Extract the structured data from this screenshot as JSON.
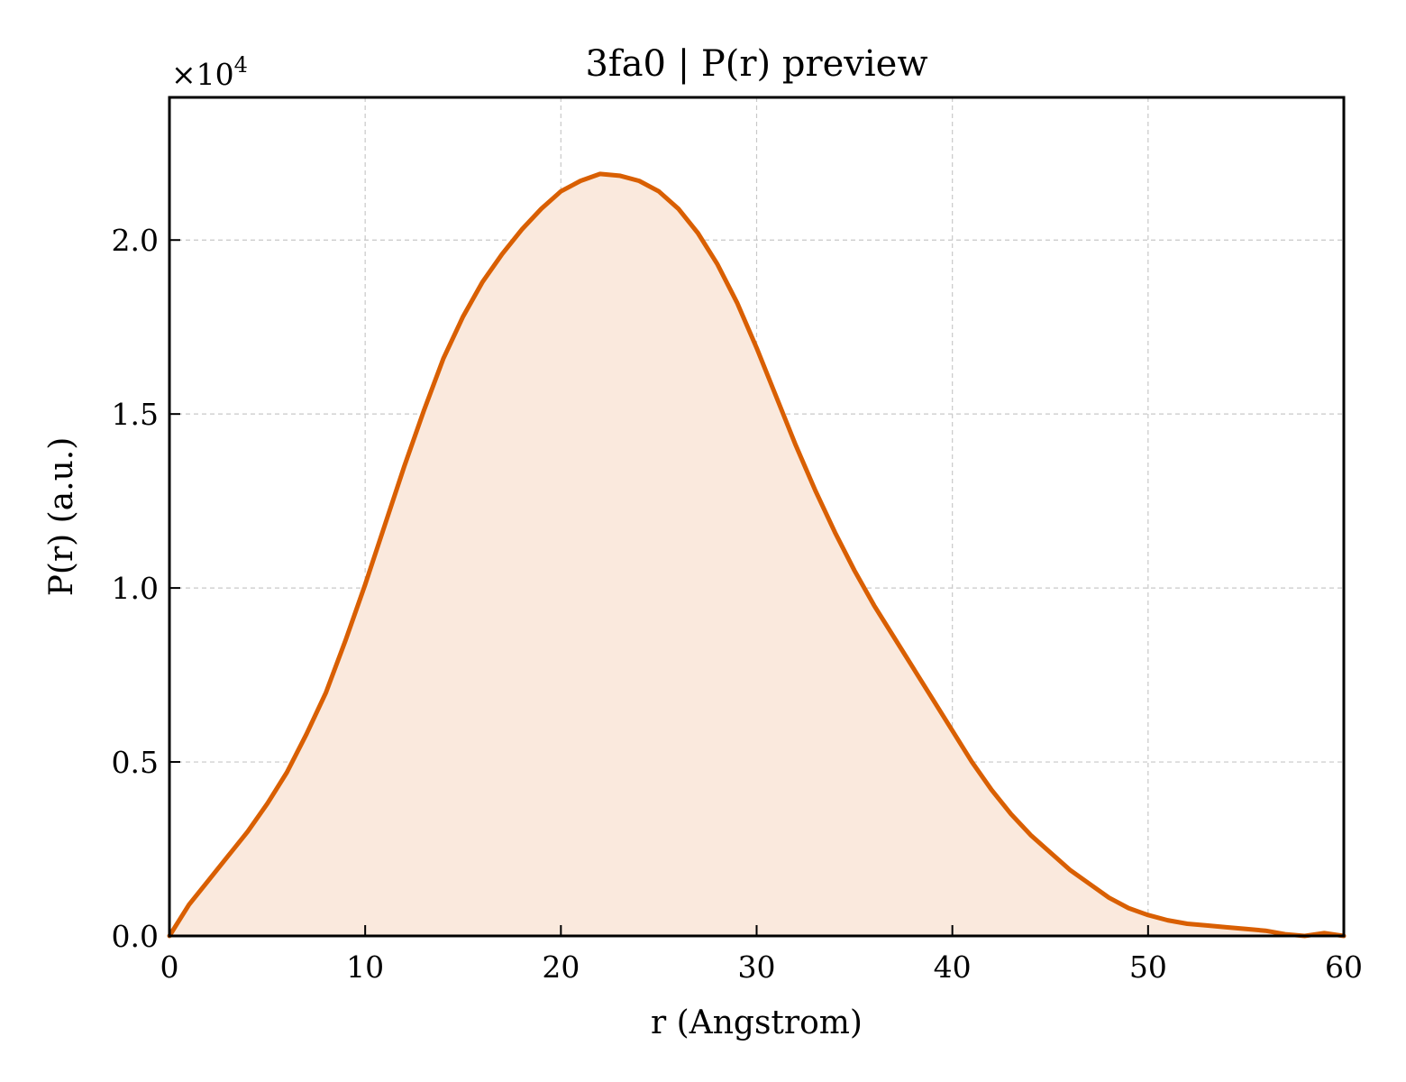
{
  "chart_data": {
    "type": "area",
    "title": "3fa0 | P(r) preview",
    "xlabel": "r (Angstrom)",
    "ylabel": "P(r) (a.u.)",
    "y_multiplier_base": "×10",
    "y_multiplier_exp": "4",
    "xlim": [
      0,
      60
    ],
    "ylim": [
      0,
      24100
    ],
    "xticks": [
      0,
      10,
      20,
      30,
      40,
      50,
      60
    ],
    "xtick_labels": [
      "0",
      "10",
      "20",
      "30",
      "40",
      "50",
      "60"
    ],
    "yticks": [
      0,
      5000,
      10000,
      15000,
      20000
    ],
    "ytick_labels": [
      "0.0",
      "0.5",
      "1.0",
      "1.5",
      "2.0"
    ],
    "grid": true,
    "line_color": "#d95f02",
    "fill_color": "#fae9dd",
    "series": [
      {
        "x": [
          0,
          1,
          2,
          3,
          4,
          5,
          6,
          7,
          8,
          9,
          10,
          11,
          12,
          13,
          14,
          15,
          16,
          17,
          18,
          19,
          20,
          21,
          22,
          23,
          24,
          25,
          26,
          27,
          28,
          29,
          30,
          31,
          32,
          33,
          34,
          35,
          36,
          37,
          38,
          39,
          40,
          41,
          42,
          43,
          44,
          45,
          46,
          47,
          48,
          49,
          50,
          51,
          52,
          53,
          54,
          55,
          56,
          57,
          58,
          59,
          60
        ],
        "values": [
          0,
          900,
          1600,
          2300,
          3000,
          3800,
          4700,
          5800,
          7000,
          8500,
          10100,
          11800,
          13500,
          15100,
          16600,
          17800,
          18800,
          19600,
          20300,
          20900,
          21400,
          21700,
          21900,
          21850,
          21700,
          21400,
          20900,
          20200,
          19300,
          18200,
          16900,
          15500,
          14100,
          12800,
          11600,
          10500,
          9500,
          8600,
          7700,
          6800,
          5900,
          5000,
          4200,
          3500,
          2900,
          2400,
          1900,
          1500,
          1100,
          800,
          600,
          450,
          350,
          300,
          250,
          200,
          150,
          50,
          0,
          80,
          0
        ]
      }
    ]
  }
}
